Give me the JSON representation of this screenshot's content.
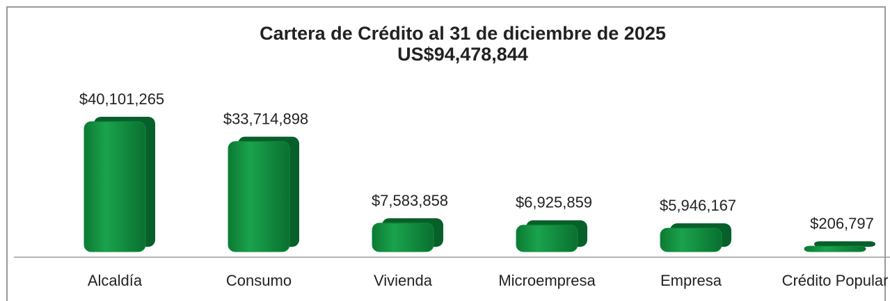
{
  "chart_data": {
    "type": "bar",
    "title": "Cartera de Crédito al 31 de diciembre de 2025",
    "subtitle": "US$94,478,844",
    "categories": [
      "Alcaldía",
      "Consumo",
      "Vivienda",
      "Microempresa",
      "Empresa",
      "Crédito Popular"
    ],
    "values": [
      40101265,
      33714898,
      7583858,
      6925859,
      5946167,
      206797
    ],
    "value_labels": [
      "$40,101,265",
      "$33,714,898",
      "$7,583,858",
      "$6,925,859",
      "$5,946,167",
      "$206,797"
    ],
    "color": "#0f8a3c"
  }
}
